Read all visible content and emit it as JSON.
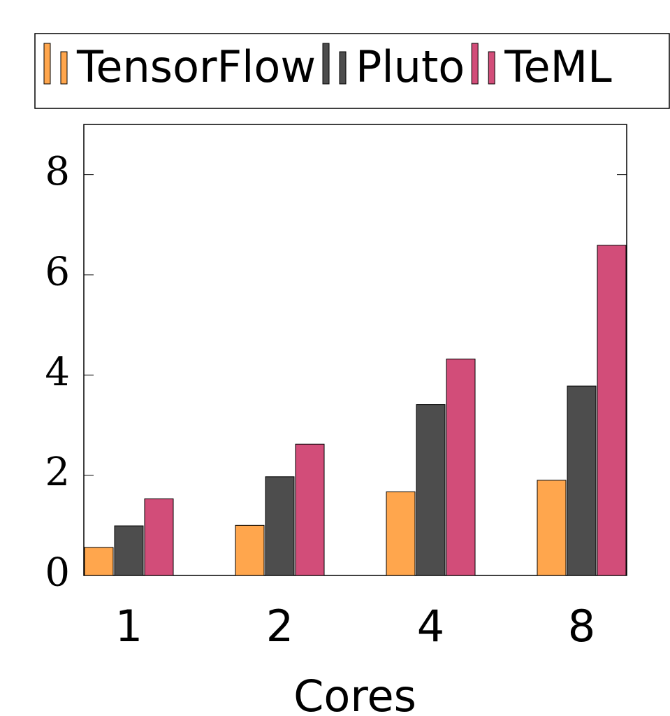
{
  "chart_data": {
    "type": "bar",
    "categories": [
      "1",
      "2",
      "4",
      "8"
    ],
    "series": [
      {
        "name": "TensorFlow",
        "color": "#ffa64d",
        "values": [
          0.56,
          1.0,
          1.67,
          1.9
        ]
      },
      {
        "name": "Pluto",
        "color": "#4d4d4d",
        "values": [
          0.99,
          1.97,
          3.41,
          3.78
        ]
      },
      {
        "name": "TeML",
        "color": "#d24d79",
        "values": [
          1.53,
          2.62,
          4.32,
          6.59
        ]
      }
    ],
    "xlabel": "Cores",
    "ylim": [
      0,
      9
    ],
    "yticks": [
      0,
      2,
      4,
      6,
      8
    ],
    "legend": "top"
  }
}
